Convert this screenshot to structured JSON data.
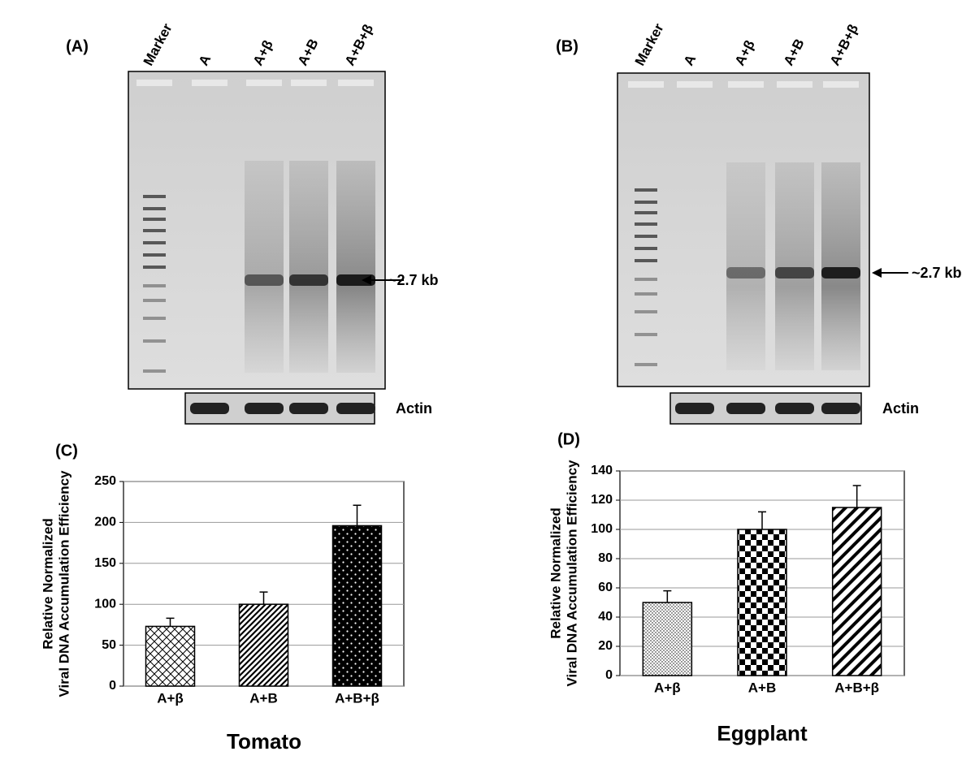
{
  "gels": [
    {
      "label": "(A)",
      "lanes": [
        "Marker",
        "A",
        "A+β",
        "A+B",
        "A+B+β"
      ],
      "band_label": "~2.7 kb",
      "loading_label": "Actin"
    },
    {
      "label": "(B)",
      "lanes": [
        "Marker",
        "A",
        "A+β",
        "A+B",
        "A+B+β"
      ],
      "band_label": "~2.7 kb",
      "loading_label": "Actin"
    }
  ],
  "chart_data": [
    {
      "type": "bar",
      "panel": "(C)",
      "ylabel": [
        "Relative Normalized",
        "Viral DNA Accumulation Efficiency"
      ],
      "xlabel": "Tomato",
      "categories": [
        "A+β",
        "A+B",
        "A+B+β"
      ],
      "values": [
        73,
        100,
        196
      ],
      "errors": [
        10,
        15,
        25
      ],
      "ylim": [
        0,
        250
      ],
      "yticks": [
        0,
        50,
        100,
        150,
        200,
        250
      ],
      "grid": true
    },
    {
      "type": "bar",
      "panel": "(D)",
      "ylabel": [
        "Relative Normalized",
        "Viral DNA Accumulation Efficiency"
      ],
      "xlabel": "Eggplant",
      "categories": [
        "A+β",
        "A+B",
        "A+B+β"
      ],
      "values": [
        50,
        100,
        115
      ],
      "errors": [
        8,
        12,
        15
      ],
      "ylim": [
        0,
        140
      ],
      "yticks": [
        0,
        20,
        40,
        60,
        80,
        100,
        120,
        140
      ],
      "grid": true
    }
  ]
}
